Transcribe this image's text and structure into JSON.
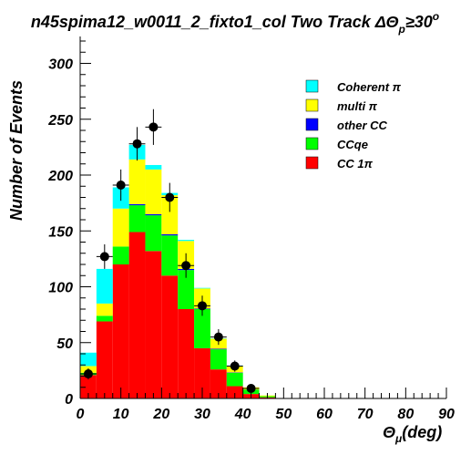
{
  "chart_data": {
    "type": "bar",
    "stacked": true,
    "title": "n45spima12_w0011_2_fixto1_col Two Track ΔΘ",
    "title_sub": "p",
    "title_tail": "≥30",
    "title_sup": "o",
    "ylabel": "Number of Events",
    "xlabel_main": "Θ",
    "xlabel_sub": "μ",
    "xlabel_tail": "(deg)",
    "xlim": [
      0,
      90
    ],
    "ylim": [
      0,
      320
    ],
    "xticks": [
      "0",
      "10",
      "20",
      "30",
      "40",
      "50",
      "60",
      "70",
      "80",
      "90"
    ],
    "yticks": [
      "0",
      "50",
      "100",
      "150",
      "200",
      "250",
      "300"
    ],
    "bin_edges": [
      0,
      4,
      8,
      12,
      16,
      20,
      24,
      28,
      32,
      36,
      40,
      44,
      48,
      52,
      56,
      60,
      64,
      68,
      72,
      76,
      80,
      84,
      88,
      90
    ],
    "legend_position": "top-right",
    "legend_order": [
      "Coherent π",
      "multi π",
      "other CC",
      "CCqe",
      "CC 1π"
    ],
    "series": [
      {
        "name": "CC 1π",
        "color": "#ff0000",
        "values": [
          21,
          69,
          120,
          149,
          132,
          110,
          80,
          45,
          26,
          11,
          4,
          1,
          0,
          0,
          0,
          0,
          0,
          0,
          0,
          0,
          0,
          0,
          0
        ]
      },
      {
        "name": "CCqe",
        "color": "#00ff00",
        "values": [
          2,
          5,
          16,
          24,
          32,
          36,
          35,
          35,
          18,
          12,
          4,
          1,
          0,
          0,
          0,
          0,
          0,
          0,
          0,
          0,
          0,
          0,
          0
        ]
      },
      {
        "name": "other CC",
        "color": "#0000ff",
        "values": [
          0,
          0,
          0,
          1,
          1,
          1,
          1,
          0.5,
          0.5,
          0.3,
          0,
          0,
          0,
          0,
          0,
          0,
          0,
          0,
          0,
          0,
          0,
          0,
          0
        ]
      },
      {
        "name": "multi π",
        "color": "#ffff00",
        "values": [
          6,
          11,
          34,
          40,
          40,
          35,
          25,
          18,
          9,
          6,
          2,
          0.7,
          0.2,
          0,
          0,
          0,
          0,
          0,
          0,
          0,
          0,
          0,
          0
        ]
      },
      {
        "name": "Coherent π",
        "color": "#00ffff",
        "values": [
          12,
          31,
          19,
          13,
          4,
          2,
          1,
          0.5,
          0.3,
          0.2,
          0,
          0,
          0,
          0,
          0,
          0,
          0,
          0,
          0,
          0,
          0,
          0,
          0
        ]
      }
    ],
    "data_points": [
      {
        "x": 2,
        "y": 22,
        "err": 5
      },
      {
        "x": 6,
        "y": 127,
        "err": 11
      },
      {
        "x": 10,
        "y": 191,
        "err": 14
      },
      {
        "x": 14,
        "y": 228,
        "err": 15
      },
      {
        "x": 18,
        "y": 243,
        "err": 16
      },
      {
        "x": 22,
        "y": 180,
        "err": 13
      },
      {
        "x": 26,
        "y": 119,
        "err": 11
      },
      {
        "x": 30,
        "y": 83,
        "err": 9
      },
      {
        "x": 34,
        "y": 55,
        "err": 7
      },
      {
        "x": 38,
        "y": 29,
        "err": 5
      },
      {
        "x": 42,
        "y": 9,
        "err": 3
      }
    ]
  }
}
